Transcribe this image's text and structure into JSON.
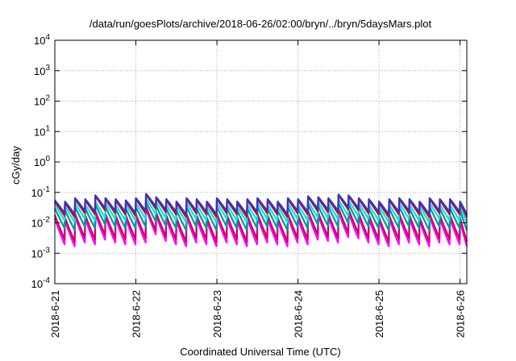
{
  "chart_data": {
    "type": "line",
    "title": "/data/run/goesPlots/archive/2018-06-26/02:00/bryn/../bryn/5daysMars.plot",
    "xlabel": "Coordinated Universal Time (UTC)",
    "ylabel": "cGy/day",
    "y_scale": "log",
    "ylim": [
      0.0001,
      10000
    ],
    "xlim": [
      "2018-06-21 00:00",
      "2018-06-26 02:00"
    ],
    "x_ticks": [
      "2018-6-21",
      "2018-6-22",
      "2018-6-23",
      "2018-6-24",
      "2018-6-25",
      "2018-6-26"
    ],
    "y_ticks": [
      {
        "base": "10",
        "exp": "-4"
      },
      {
        "base": "10",
        "exp": "-3"
      },
      {
        "base": "10",
        "exp": "-2"
      },
      {
        "base": "10",
        "exp": "-1"
      },
      {
        "base": "10",
        "exp": "0"
      },
      {
        "base": "10",
        "exp": "1"
      },
      {
        "base": "10",
        "exp": "2"
      },
      {
        "base": "10",
        "exp": "3"
      },
      {
        "base": "10",
        "exp": "4"
      }
    ],
    "grid": true,
    "legend": "none",
    "sawtooth_period_hours": 3,
    "series": [
      {
        "color": "#ff00ff",
        "peaks": [
          0.014,
          0.012,
          0.016,
          0.014,
          0.02,
          0.016,
          0.014,
          0.014,
          0.016,
          0.03,
          0.018,
          0.014,
          0.012,
          0.016,
          0.014,
          0.012,
          0.016,
          0.014,
          0.012,
          0.014,
          0.016,
          0.014,
          0.012,
          0.016,
          0.014,
          0.02,
          0.018,
          0.016,
          0.024,
          0.022,
          0.016,
          0.014,
          0.012,
          0.014,
          0.016,
          0.014,
          0.012,
          0.016,
          0.014,
          0.014,
          0.012
        ],
        "troughs_ratio": 0.14
      },
      {
        "color": "#cc0066",
        "peaks": [
          0.018,
          0.015,
          0.02,
          0.018,
          0.025,
          0.02,
          0.018,
          0.018,
          0.02,
          0.035,
          0.022,
          0.018,
          0.015,
          0.02,
          0.018,
          0.015,
          0.02,
          0.018,
          0.015,
          0.018,
          0.02,
          0.018,
          0.015,
          0.02,
          0.018,
          0.025,
          0.022,
          0.02,
          0.03,
          0.028,
          0.02,
          0.018,
          0.015,
          0.018,
          0.02,
          0.018,
          0.015,
          0.02,
          0.018,
          0.018,
          0.015
        ],
        "troughs_ratio": 0.16
      },
      {
        "color": "#009999",
        "peaks": [
          0.03,
          0.026,
          0.034,
          0.03,
          0.04,
          0.034,
          0.03,
          0.03,
          0.034,
          0.05,
          0.036,
          0.03,
          0.026,
          0.034,
          0.03,
          0.026,
          0.034,
          0.03,
          0.026,
          0.03,
          0.034,
          0.03,
          0.026,
          0.034,
          0.03,
          0.04,
          0.036,
          0.034,
          0.045,
          0.042,
          0.034,
          0.03,
          0.026,
          0.03,
          0.034,
          0.03,
          0.026,
          0.034,
          0.03,
          0.03,
          0.026
        ],
        "troughs_ratio": 0.22
      },
      {
        "color": "#00e5e5",
        "peaks": [
          0.04,
          0.035,
          0.045,
          0.04,
          0.05,
          0.045,
          0.04,
          0.04,
          0.045,
          0.065,
          0.048,
          0.04,
          0.035,
          0.045,
          0.04,
          0.035,
          0.045,
          0.04,
          0.035,
          0.04,
          0.045,
          0.04,
          0.035,
          0.045,
          0.04,
          0.05,
          0.048,
          0.045,
          0.058,
          0.055,
          0.045,
          0.04,
          0.035,
          0.04,
          0.045,
          0.04,
          0.035,
          0.045,
          0.04,
          0.04,
          0.035
        ],
        "troughs_ratio": 0.3
      },
      {
        "color": "#e00000",
        "peaks": [
          0.05,
          0.045,
          0.06,
          0.055,
          0.075,
          0.06,
          0.055,
          0.05,
          0.06,
          0.085,
          0.065,
          0.055,
          0.045,
          0.06,
          0.055,
          0.045,
          0.06,
          0.055,
          0.045,
          0.055,
          0.06,
          0.055,
          0.045,
          0.06,
          0.055,
          0.07,
          0.065,
          0.06,
          0.08,
          0.075,
          0.06,
          0.055,
          0.045,
          0.055,
          0.06,
          0.055,
          0.045,
          0.06,
          0.055,
          0.055,
          0.045
        ],
        "troughs_ratio": 0.34
      },
      {
        "color": "#3333cc",
        "peaks": [
          0.055,
          0.05,
          0.065,
          0.06,
          0.08,
          0.065,
          0.06,
          0.055,
          0.065,
          0.09,
          0.07,
          0.06,
          0.05,
          0.065,
          0.06,
          0.05,
          0.065,
          0.06,
          0.05,
          0.06,
          0.065,
          0.06,
          0.05,
          0.065,
          0.06,
          0.075,
          0.07,
          0.065,
          0.085,
          0.08,
          0.065,
          0.06,
          0.05,
          0.06,
          0.065,
          0.06,
          0.05,
          0.065,
          0.06,
          0.06,
          0.05
        ],
        "troughs_ratio": 0.38
      }
    ]
  }
}
